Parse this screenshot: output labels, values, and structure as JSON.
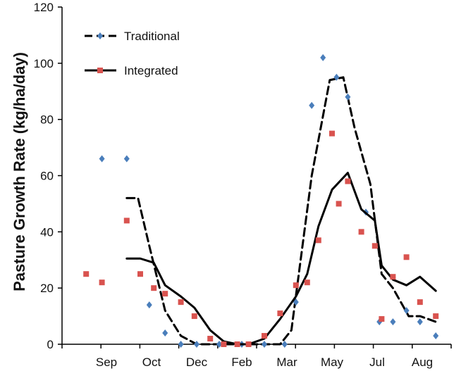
{
  "chart_data": {
    "type": "line",
    "title": "",
    "xlabel": "",
    "ylabel": "Pasture Growth Rate (kg/ha/day)",
    "ylim": [
      0,
      120
    ],
    "xlim": [
      -0.7,
      11.7
    ],
    "yticks": [
      0,
      20,
      40,
      60,
      80,
      100,
      120
    ],
    "categories": [
      "Sep",
      "Oct",
      "Dec",
      "Feb",
      "Mar",
      "May",
      "Jul",
      "Aug"
    ],
    "category_positions": [
      0,
      1,
      2,
      3,
      4,
      5,
      6,
      7
    ],
    "legend": {
      "position": "top-left",
      "entries": [
        {
          "label": "Traditional",
          "series": "traditional"
        },
        {
          "label": "Integrated",
          "series": "integrated"
        }
      ]
    },
    "series": [
      {
        "id": "traditional",
        "name": "Traditional",
        "marker": "diamond",
        "marker_color": "#4a7ebb",
        "line_color": "#000000",
        "line_style": "dashed",
        "points": [
          {
            "x": -0.1,
            "y": 66
          },
          {
            "x": 0.45,
            "y": 66
          },
          {
            "x": 0.95,
            "y": 14
          },
          {
            "x": 1.3,
            "y": 4
          },
          {
            "x": 1.65,
            "y": 0
          },
          {
            "x": 2.0,
            "y": 0
          },
          {
            "x": 2.5,
            "y": 0
          },
          {
            "x": 3.0,
            "y": 0
          },
          {
            "x": 3.5,
            "y": 0
          },
          {
            "x": 3.95,
            "y": 0
          },
          {
            "x": 4.2,
            "y": 15
          },
          {
            "x": 4.55,
            "y": 85
          },
          {
            "x": 4.8,
            "y": 102
          },
          {
            "x": 5.1,
            "y": 95
          },
          {
            "x": 5.35,
            "y": 88
          },
          {
            "x": 5.75,
            "y": 47
          },
          {
            "x": 6.05,
            "y": 8
          },
          {
            "x": 6.35,
            "y": 8
          },
          {
            "x": 6.65,
            "y": 12
          },
          {
            "x": 6.95,
            "y": 8
          },
          {
            "x": 7.3,
            "y": 3
          }
        ],
        "line": [
          {
            "x": 0.45,
            "y": 52
          },
          {
            "x": 0.7,
            "y": 52
          },
          {
            "x": 0.95,
            "y": 35
          },
          {
            "x": 1.3,
            "y": 12
          },
          {
            "x": 1.65,
            "y": 3
          },
          {
            "x": 2.0,
            "y": 0
          },
          {
            "x": 2.5,
            "y": 0
          },
          {
            "x": 3.0,
            "y": 0
          },
          {
            "x": 3.5,
            "y": 0
          },
          {
            "x": 3.85,
            "y": 0
          },
          {
            "x": 4.1,
            "y": 5
          },
          {
            "x": 4.55,
            "y": 60
          },
          {
            "x": 4.95,
            "y": 94
          },
          {
            "x": 5.25,
            "y": 95
          },
          {
            "x": 5.5,
            "y": 77
          },
          {
            "x": 5.85,
            "y": 57
          },
          {
            "x": 6.1,
            "y": 25
          },
          {
            "x": 6.35,
            "y": 20
          },
          {
            "x": 6.7,
            "y": 10
          },
          {
            "x": 6.95,
            "y": 10
          },
          {
            "x": 7.3,
            "y": 8
          }
        ]
      },
      {
        "id": "integrated",
        "name": "Integrated",
        "marker": "square",
        "marker_color": "#d9534f",
        "line_color": "#000000",
        "line_style": "solid",
        "points": [
          {
            "x": -0.45,
            "y": 25
          },
          {
            "x": -0.1,
            "y": 22
          },
          {
            "x": 0.45,
            "y": 44
          },
          {
            "x": 0.75,
            "y": 25
          },
          {
            "x": 1.05,
            "y": 20
          },
          {
            "x": 1.3,
            "y": 18
          },
          {
            "x": 1.65,
            "y": 15
          },
          {
            "x": 1.95,
            "y": 10
          },
          {
            "x": 2.3,
            "y": 2
          },
          {
            "x": 2.6,
            "y": 0
          },
          {
            "x": 2.9,
            "y": 0
          },
          {
            "x": 3.15,
            "y": 0
          },
          {
            "x": 3.5,
            "y": 3
          },
          {
            "x": 3.85,
            "y": 11
          },
          {
            "x": 4.2,
            "y": 21
          },
          {
            "x": 4.45,
            "y": 22
          },
          {
            "x": 4.7,
            "y": 37
          },
          {
            "x": 5.0,
            "y": 75
          },
          {
            "x": 5.15,
            "y": 50
          },
          {
            "x": 5.35,
            "y": 58
          },
          {
            "x": 5.65,
            "y": 40
          },
          {
            "x": 5.95,
            "y": 35
          },
          {
            "x": 6.1,
            "y": 9
          },
          {
            "x": 6.35,
            "y": 24
          },
          {
            "x": 6.65,
            "y": 31
          },
          {
            "x": 6.95,
            "y": 15
          },
          {
            "x": 7.3,
            "y": 10
          }
        ],
        "line": [
          {
            "x": 0.45,
            "y": 30.5
          },
          {
            "x": 0.75,
            "y": 30.5
          },
          {
            "x": 1.05,
            "y": 29
          },
          {
            "x": 1.3,
            "y": 21
          },
          {
            "x": 1.65,
            "y": 17
          },
          {
            "x": 1.95,
            "y": 13
          },
          {
            "x": 2.3,
            "y": 5
          },
          {
            "x": 2.6,
            "y": 1
          },
          {
            "x": 2.9,
            "y": 0
          },
          {
            "x": 3.15,
            "y": 0
          },
          {
            "x": 3.5,
            "y": 2
          },
          {
            "x": 3.85,
            "y": 9
          },
          {
            "x": 4.2,
            "y": 17
          },
          {
            "x": 4.45,
            "y": 25
          },
          {
            "x": 4.7,
            "y": 42
          },
          {
            "x": 5.0,
            "y": 55
          },
          {
            "x": 5.35,
            "y": 61
          },
          {
            "x": 5.65,
            "y": 48
          },
          {
            "x": 5.95,
            "y": 44
          },
          {
            "x": 6.1,
            "y": 28
          },
          {
            "x": 6.35,
            "y": 23
          },
          {
            "x": 6.65,
            "y": 21
          },
          {
            "x": 6.95,
            "y": 24
          },
          {
            "x": 7.3,
            "y": 19
          }
        ]
      }
    ]
  }
}
